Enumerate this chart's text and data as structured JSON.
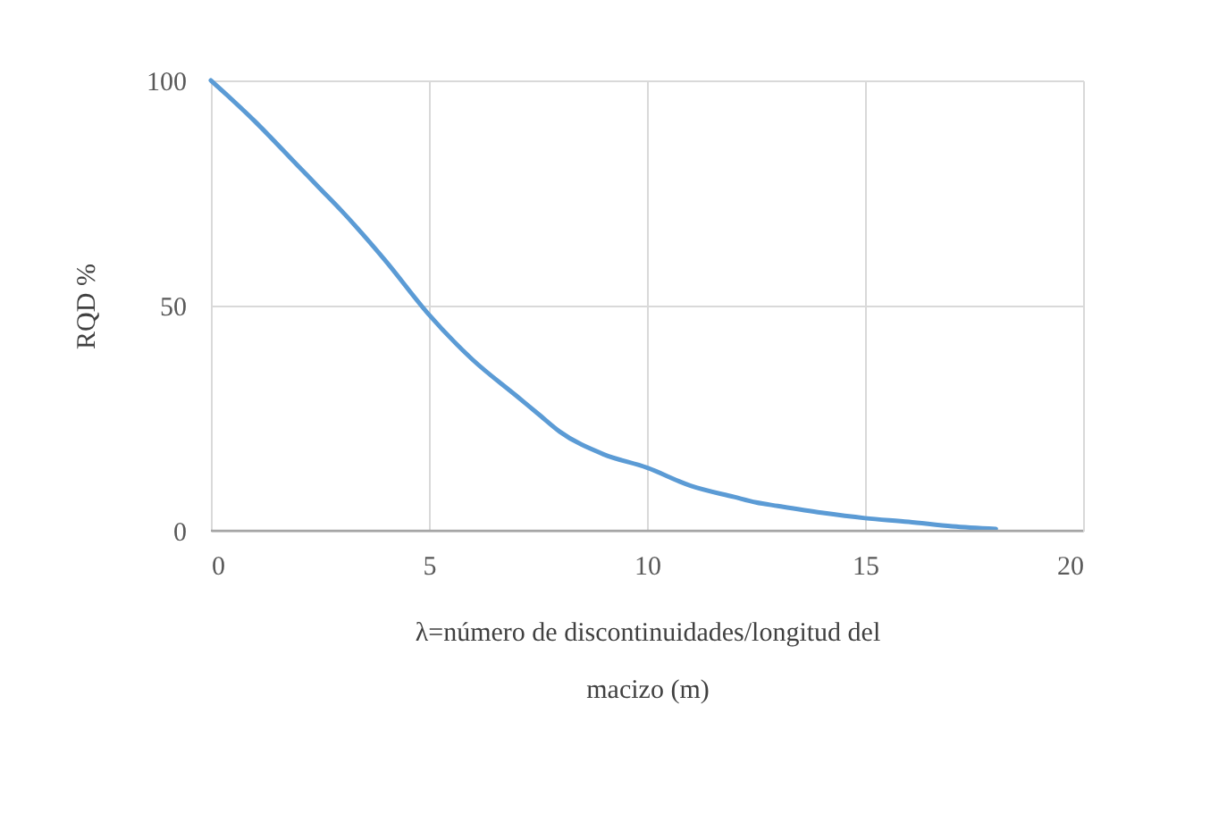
{
  "chart_data": {
    "type": "line",
    "xlabel": "λ=número de discontinuidades/longitud del macizo (m)",
    "ylabel": "RQD %",
    "x": [
      0,
      1,
      2,
      2.5,
      3,
      4,
      5,
      6,
      7,
      7.5,
      8,
      9,
      10,
      11,
      12,
      12.5,
      13,
      14,
      15,
      16,
      17,
      18
    ],
    "series": [
      {
        "color": "#5b9bd5",
        "values": [
          100,
          91,
          81,
          76,
          71,
          60,
          48,
          38,
          30,
          26,
          22,
          17,
          14,
          10,
          7.5,
          6.3,
          5.5,
          4,
          2.8,
          2,
          1,
          0.4
        ]
      }
    ],
    "xlim": [
      0,
      20
    ],
    "xticks": [
      0,
      5,
      10,
      15,
      20
    ],
    "ylim": [
      0,
      100
    ],
    "yticks": [
      0,
      50,
      100
    ],
    "grid": true,
    "marker": "none",
    "line_style": "solid"
  }
}
